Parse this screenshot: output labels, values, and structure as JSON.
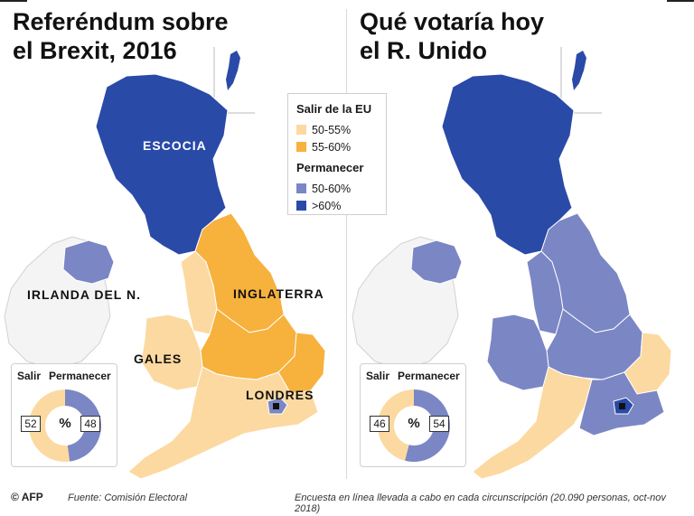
{
  "left_panel": {
    "title_line1": "Referéndum sobre",
    "title_line2": "el Brexit, 2016",
    "labels": {
      "escocia": "ESCOCIA",
      "irlanda": "IRLANDA DEL N.",
      "inglaterra": "INGLATERRA",
      "gales": "GALES",
      "londres": "LONDRES"
    },
    "donut": {
      "salir_label": "Salir",
      "permanecer_label": "Permanecer",
      "salir_value": 52,
      "permanecer_value": 48,
      "center": "%"
    }
  },
  "right_panel": {
    "title_line1": "Qué votaría hoy",
    "title_line2": "el R. Unido",
    "donut": {
      "salir_label": "Salir",
      "permanecer_label": "Permanecer",
      "salir_value": 46,
      "permanecer_value": 54,
      "center": "%"
    }
  },
  "legend": {
    "leave_title": "Salir de la EU",
    "leave_items": [
      "50-55%",
      "55-60%"
    ],
    "remain_title": "Permanecer",
    "remain_items": [
      "50-60%",
      ">60%"
    ]
  },
  "colors": {
    "leave_50_55": "#fcd9a0",
    "leave_55_60": "#f7b13d",
    "remain_50_60": "#7b86c4",
    "remain_60_plus": "#2a4aa8"
  },
  "footer": {
    "credit": "© AFP",
    "source": "Fuente: Comisión Electoral",
    "note": "Encuesta en línea llevada a cabo en cada circunscripción (20.090 personas, oct-nov 2018)"
  }
}
